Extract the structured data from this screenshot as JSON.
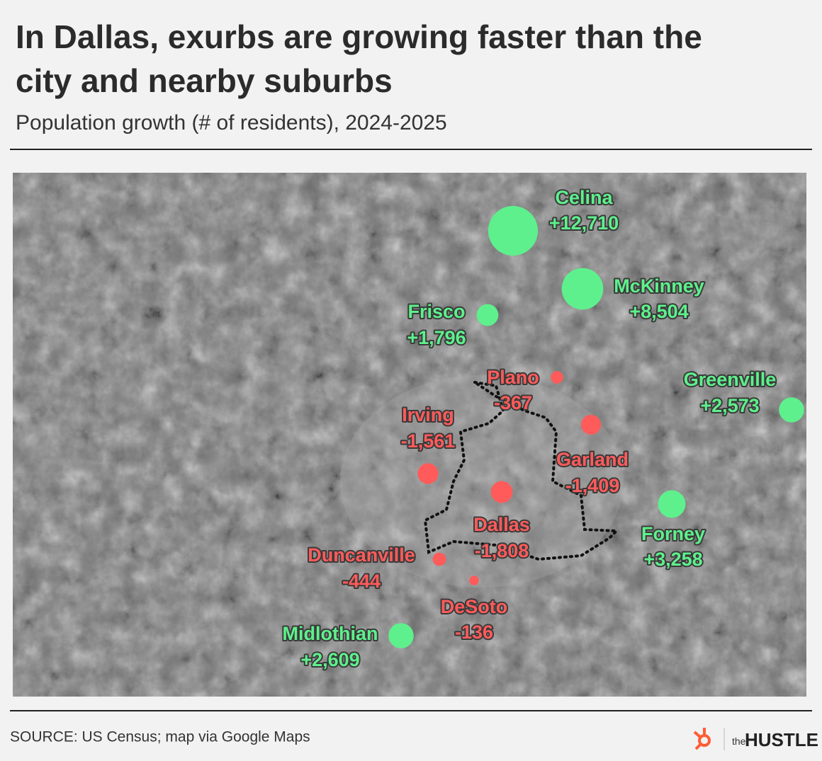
{
  "header": {
    "title": [
      "In Dallas, exurbs are growing faster than the",
      "city and nearby suburbs"
    ],
    "subtitle": "Population growth (# of residents), 2024-2025"
  },
  "map": {
    "positive_color": "#5ef08c",
    "negative_color": "#ff5b5b",
    "cities": [
      {
        "name": "Celina",
        "value": 12710,
        "value_label": "+12,710"
      },
      {
        "name": "McKinney",
        "value": 8504,
        "value_label": "+8,504"
      },
      {
        "name": "Frisco",
        "value": 1796,
        "value_label": "+1,796"
      },
      {
        "name": "Plano",
        "value": -367,
        "value_label": "-367"
      },
      {
        "name": "Greenville",
        "value": 2573,
        "value_label": "+2,573"
      },
      {
        "name": "Garland",
        "value": -1409,
        "value_label": "-1,409"
      },
      {
        "name": "Irving",
        "value": -1561,
        "value_label": "-1,561"
      },
      {
        "name": "Dallas",
        "value": -1808,
        "value_label": "-1,808"
      },
      {
        "name": "Forney",
        "value": 3258,
        "value_label": "+3,258"
      },
      {
        "name": "Duncanville",
        "value": -444,
        "value_label": "-444"
      },
      {
        "name": "DeSoto",
        "value": -136,
        "value_label": "-136"
      },
      {
        "name": "Midlothian",
        "value": 2609,
        "value_label": "+2,609"
      }
    ]
  },
  "footer": {
    "source": "SOURCE: US Census; map via Google Maps",
    "logo_small": "the",
    "logo": "HUSTLE"
  }
}
